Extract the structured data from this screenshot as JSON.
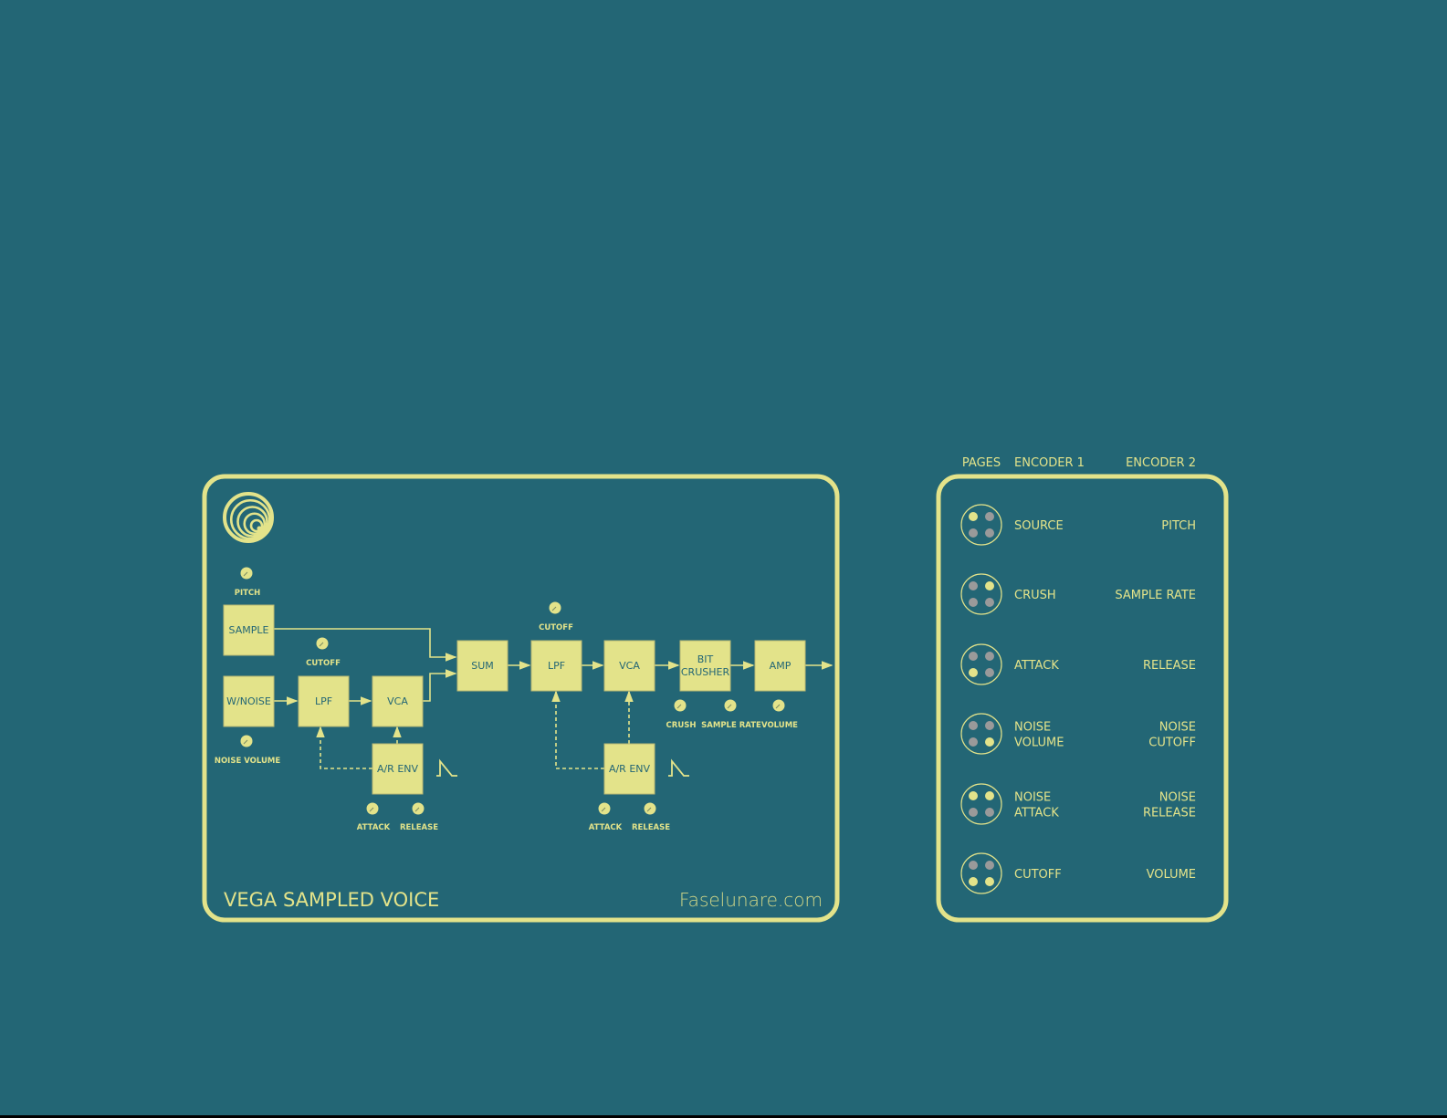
{
  "colors": {
    "background": "#236675",
    "accent": "#e3e38a",
    "dot_off": "#9a9a9a"
  },
  "diagram": {
    "title": "VEGA SAMPLED VOICE",
    "website": "Faselunare.com",
    "logo": "Faselunare",
    "blocks": [
      {
        "id": "sample",
        "lines": [
          "SAMPLE"
        ]
      },
      {
        "id": "wnoise",
        "lines": [
          "W/NOISE"
        ]
      },
      {
        "id": "lpf1",
        "lines": [
          "LPF"
        ]
      },
      {
        "id": "vca1",
        "lines": [
          "VCA"
        ]
      },
      {
        "id": "env1",
        "lines": [
          "A/R ENV"
        ]
      },
      {
        "id": "sum",
        "lines": [
          "SUM"
        ]
      },
      {
        "id": "lpf2",
        "lines": [
          "LPF"
        ]
      },
      {
        "id": "vca2",
        "lines": [
          "VCA"
        ]
      },
      {
        "id": "crusher",
        "lines": [
          "BIT",
          "CRUSHER"
        ]
      },
      {
        "id": "amp",
        "lines": [
          "AMP"
        ]
      },
      {
        "id": "env2",
        "lines": [
          "A/R ENV"
        ]
      }
    ],
    "knobs": [
      {
        "id": "pitch",
        "label": "PITCH"
      },
      {
        "id": "cutoff1",
        "label": "CUTOFF"
      },
      {
        "id": "noise-volume",
        "label": "NOISE VOLUME"
      },
      {
        "id": "attack1",
        "label": "ATTACK"
      },
      {
        "id": "release1",
        "label": "RELEASE"
      },
      {
        "id": "cutoff2",
        "label": "CUTOFF"
      },
      {
        "id": "crush",
        "label": "CRUSH"
      },
      {
        "id": "sample-rate",
        "label": "SAMPLE RATE"
      },
      {
        "id": "volume",
        "label": "VOLUME"
      },
      {
        "id": "attack2",
        "label": "ATTACK"
      },
      {
        "id": "release2",
        "label": "RELEASE"
      }
    ]
  },
  "pages": {
    "headers": {
      "pages": "PAGES",
      "encoder1": "ENCODER 1",
      "encoder2": "ENCODER 2"
    },
    "rows": [
      {
        "leds": [
          1,
          0,
          0,
          0
        ],
        "encoder1": [
          "SOURCE"
        ],
        "encoder2": [
          "PITCH"
        ]
      },
      {
        "leds": [
          0,
          1,
          0,
          0
        ],
        "encoder1": [
          "CRUSH"
        ],
        "encoder2": [
          "SAMPLE RATE"
        ]
      },
      {
        "leds": [
          0,
          0,
          1,
          0
        ],
        "encoder1": [
          "ATTACK"
        ],
        "encoder2": [
          "RELEASE"
        ]
      },
      {
        "leds": [
          0,
          0,
          0,
          1
        ],
        "encoder1": [
          "NOISE",
          "VOLUME"
        ],
        "encoder2": [
          "NOISE",
          "CUTOFF"
        ]
      },
      {
        "leds": [
          1,
          1,
          0,
          0
        ],
        "encoder1": [
          "NOISE",
          "ATTACK"
        ],
        "encoder2": [
          "NOISE",
          "RELEASE"
        ]
      },
      {
        "leds": [
          0,
          0,
          1,
          1
        ],
        "encoder1": [
          "CUTOFF"
        ],
        "encoder2": [
          "VOLUME"
        ]
      }
    ]
  }
}
